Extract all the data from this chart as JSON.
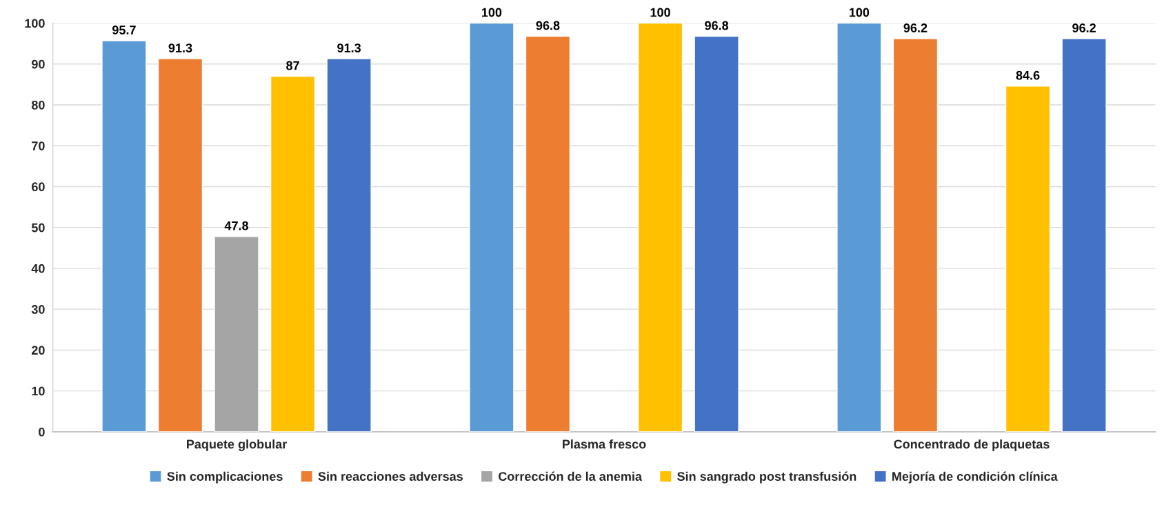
{
  "chart_data": {
    "type": "bar",
    "categories": [
      "Paquete globular",
      "Plasma fresco",
      "Concentrado de plaquetas"
    ],
    "series": [
      {
        "name": "Sin complicaciones",
        "color": "#5b9bd5",
        "values": [
          95.7,
          100,
          100
        ]
      },
      {
        "name": "Sin reacciones adversas",
        "color": "#ed7d31",
        "values": [
          91.3,
          96.8,
          96.2
        ]
      },
      {
        "name": "Corrección de la anemia",
        "color": "#a5a5a5",
        "values": [
          47.8,
          null,
          null
        ]
      },
      {
        "name": "Sin sangrado post transfusión",
        "color": "#ffc000",
        "values": [
          87,
          100,
          84.6
        ]
      },
      {
        "name": "Mejoría de condición clínica",
        "color": "#4472c4",
        "values": [
          91.3,
          96.8,
          96.2
        ]
      }
    ],
    "ylim": [
      0,
      100
    ],
    "yticks": [
      0,
      10,
      20,
      30,
      40,
      50,
      60,
      70,
      80,
      90,
      100
    ],
    "grid": "y",
    "legend": "bottom",
    "data_labels": true
  }
}
